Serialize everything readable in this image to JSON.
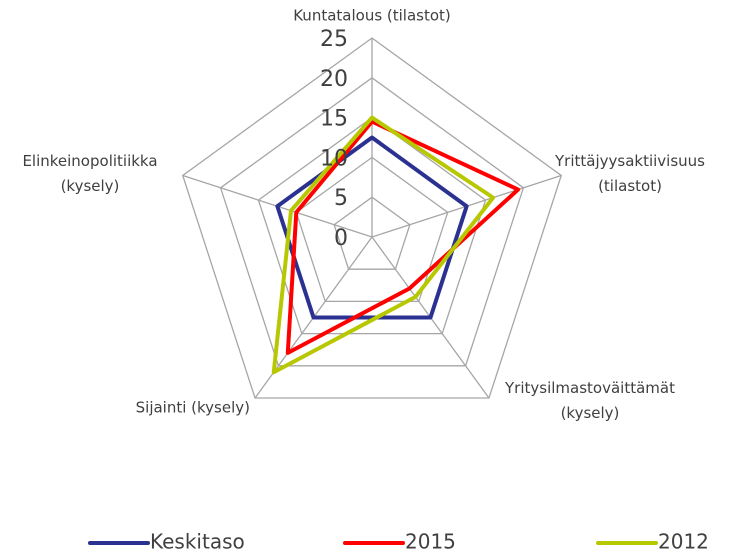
{
  "chart_data": {
    "type": "radar",
    "categories": [
      "Kuntatalous (tilastot)",
      "Yrittäjyysaktiivisuus (tilastot)",
      "Yritysilmastoväittämät (kysely)",
      "Sijainti (kysely)",
      "Elinkeinopolitiikka (kysely)"
    ],
    "series": [
      {
        "name": "Keskitaso",
        "color": "#2b3190",
        "values": [
          12.5,
          12.5,
          12.5,
          12.5,
          12.5
        ]
      },
      {
        "name": "2015",
        "color": "#ff0000",
        "values": [
          14.5,
          19.3,
          8,
          18,
          10
        ]
      },
      {
        "name": "2012",
        "color": "#b8c800",
        "values": [
          15,
          16,
          9.3,
          21,
          10.7
        ]
      }
    ],
    "rlim": [
      0,
      25
    ],
    "rticks": [
      0,
      5,
      10,
      15,
      20,
      25
    ],
    "grid": true,
    "legend": "bottom"
  }
}
